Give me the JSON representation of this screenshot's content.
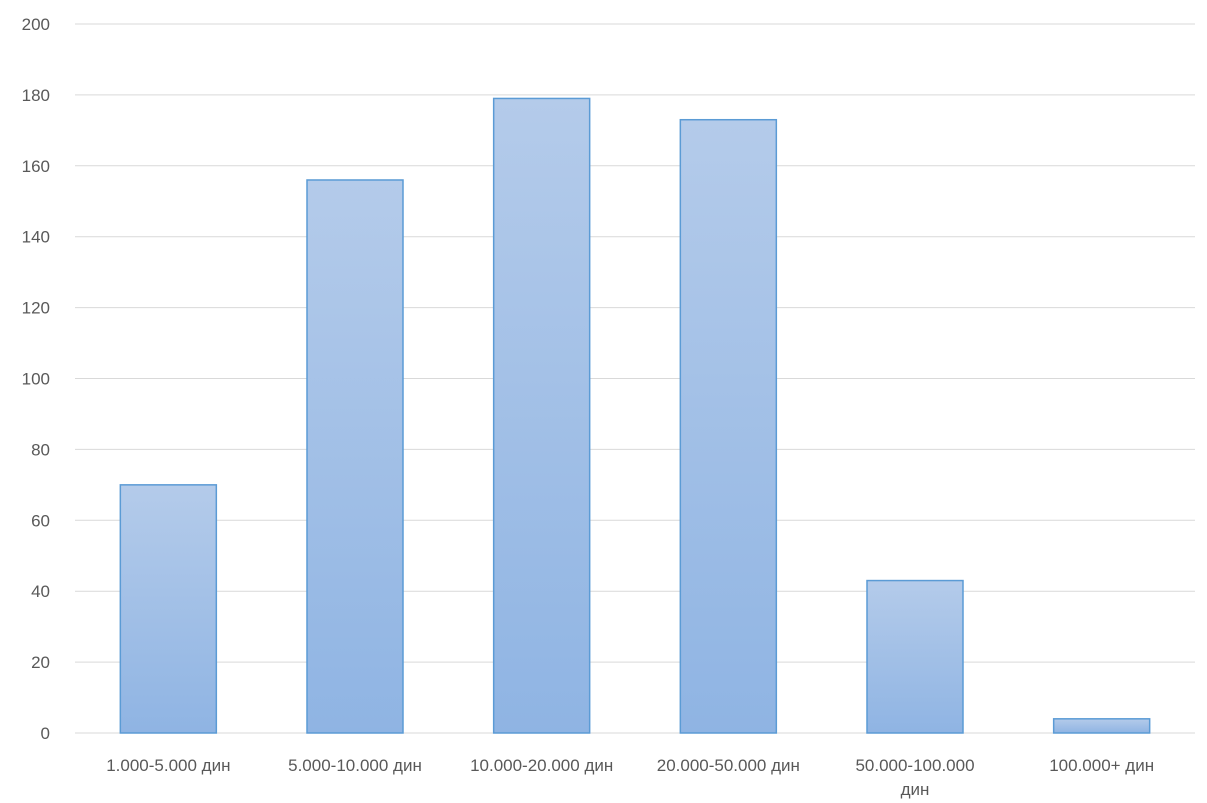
{
  "chart_data": {
    "type": "bar",
    "categories": [
      [
        "1.000-5.000 дин"
      ],
      [
        "5.000-10.000 дин"
      ],
      [
        "10.000-20.000 дин"
      ],
      [
        "20.000-50.000 дин"
      ],
      [
        "50.000-100.000",
        "дин"
      ],
      [
        "100.000+ дин"
      ]
    ],
    "values": [
      70,
      156,
      179,
      173,
      43,
      4
    ],
    "ylim": [
      0,
      200
    ],
    "yticks": [
      0,
      20,
      40,
      60,
      80,
      100,
      120,
      140,
      160,
      180,
      200
    ],
    "grid": true,
    "legend": "none",
    "colors": {
      "bar_fill_top": "#b4cbea",
      "bar_fill_bottom": "#8fb4e3",
      "bar_stroke": "#5b9bd5",
      "grid": "#d9d9d9",
      "text": "#595959"
    }
  }
}
